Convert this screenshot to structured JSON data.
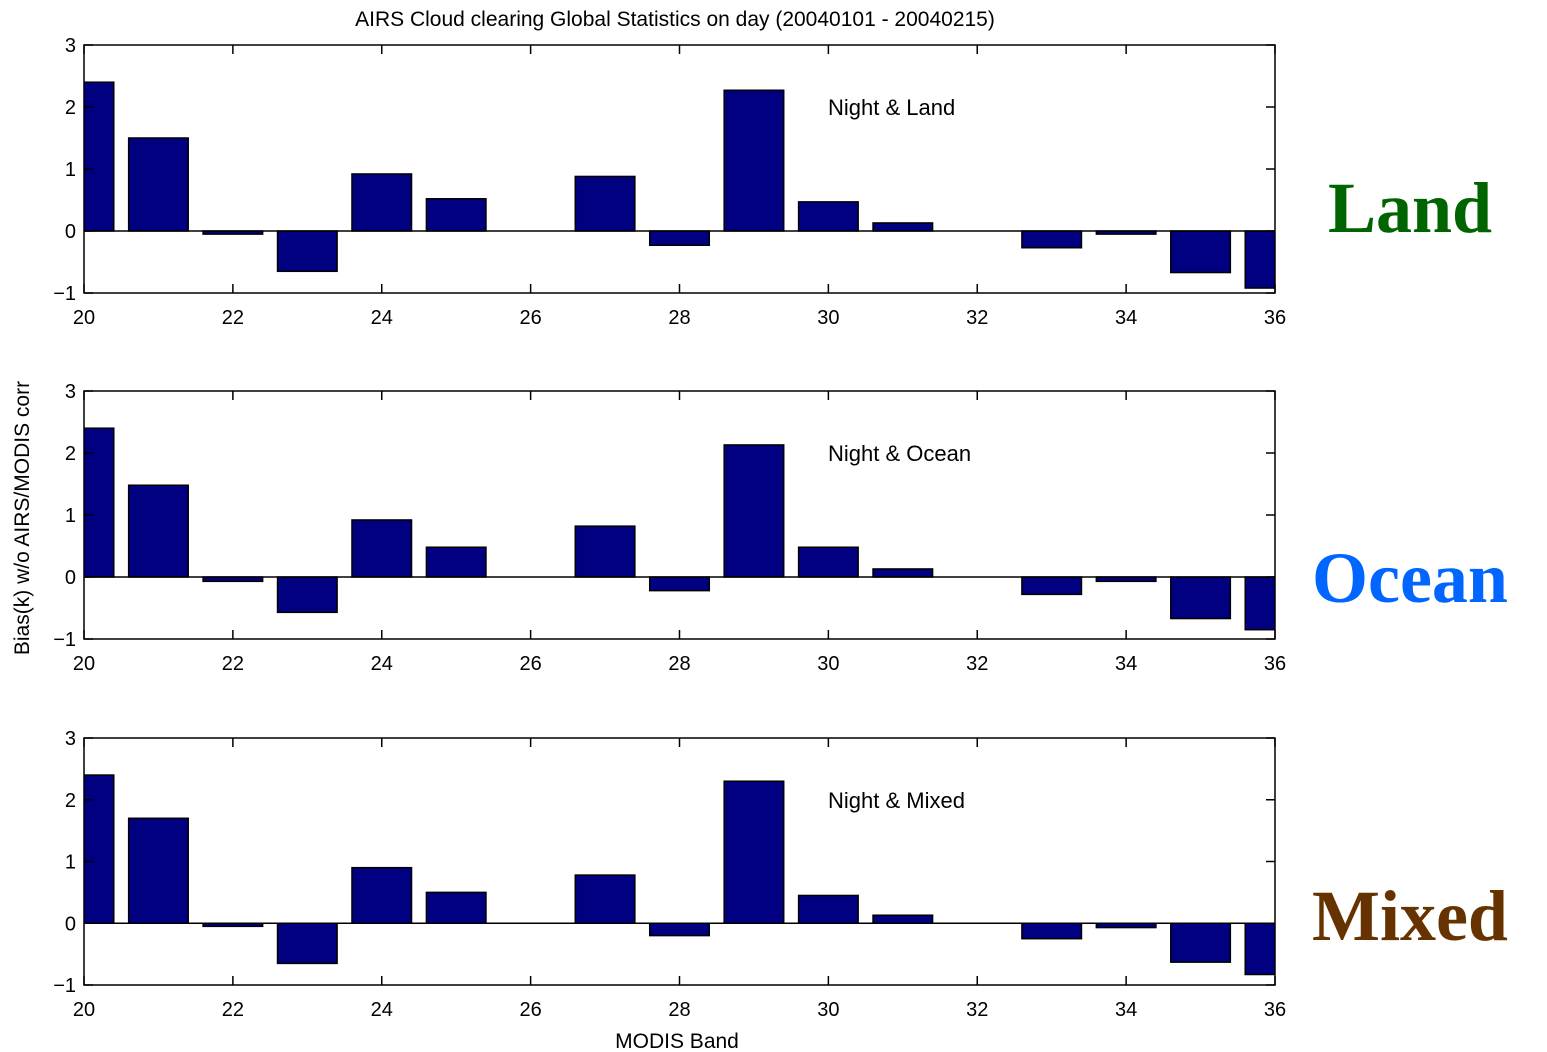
{
  "chart_data": {
    "type": "bar",
    "title": "AIRS Cloud clearing Global Statistics on day (20040101 - 20040215)",
    "xlabel": "MODIS Band",
    "ylabel": "Bias(k) w/o AIRS/MODIS corr",
    "xlim": [
      20,
      36
    ],
    "ylim": [
      -1,
      3
    ],
    "x_ticks": [
      20,
      22,
      24,
      26,
      28,
      30,
      32,
      34,
      36
    ],
    "y_ticks": [
      -1,
      0,
      1,
      2,
      3
    ],
    "bar_color": "#000080",
    "x": [
      20,
      21,
      22,
      23,
      24,
      25,
      26,
      27,
      28,
      29,
      30,
      31,
      32,
      33,
      34,
      35,
      36
    ],
    "panels": [
      {
        "label": "Night & Land",
        "side_label": "Land",
        "side_color": "#006400",
        "values": [
          2.4,
          1.5,
          -0.05,
          -0.65,
          0.92,
          0.52,
          0.0,
          0.88,
          -0.23,
          2.27,
          0.47,
          0.13,
          0.0,
          -0.27,
          -0.05,
          -0.67,
          -0.92
        ]
      },
      {
        "label": "Night & Ocean",
        "side_label": "Ocean",
        "side_color": "#0066ff",
        "values": [
          2.4,
          1.48,
          -0.07,
          -0.57,
          0.92,
          0.48,
          0.0,
          0.82,
          -0.22,
          2.13,
          0.48,
          0.13,
          0.0,
          -0.28,
          -0.07,
          -0.67,
          -0.85
        ]
      },
      {
        "label": "Night & Mixed",
        "side_label": "Mixed",
        "side_color": "#663300",
        "values": [
          2.4,
          1.7,
          -0.05,
          -0.65,
          0.9,
          0.5,
          0.0,
          0.78,
          -0.2,
          2.3,
          0.45,
          0.13,
          0.0,
          -0.25,
          -0.07,
          -0.63,
          -0.83
        ]
      }
    ]
  }
}
